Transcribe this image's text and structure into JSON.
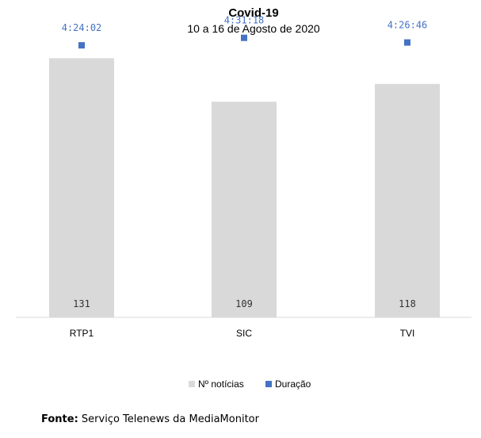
{
  "chart_data": {
    "type": "bar",
    "title": "Covid-19",
    "subtitle": "10 a 16 de Agosto de 2020",
    "categories": [
      "RTP1",
      "SIC",
      "TVI"
    ],
    "series": [
      {
        "name": "Nº notícias",
        "type": "bar",
        "color": "#d9d9d9",
        "values": [
          131,
          109,
          118
        ],
        "labels": [
          "131",
          "109",
          "118"
        ]
      },
      {
        "name": "Duração",
        "type": "scatter",
        "color": "#4472c4",
        "values_seconds": [
          15842,
          16278,
          16006
        ],
        "labels": [
          "4:24:02",
          "4:31:18",
          "4:26:46"
        ]
      }
    ],
    "ylim": [
      0,
      150
    ],
    "ylim_secondary_seconds": [
      0,
      17280
    ],
    "grid": false,
    "legend_position": "bottom"
  },
  "source": {
    "label": "Fonte:",
    "text": " Serviço Telenews da MediaMonitor"
  }
}
